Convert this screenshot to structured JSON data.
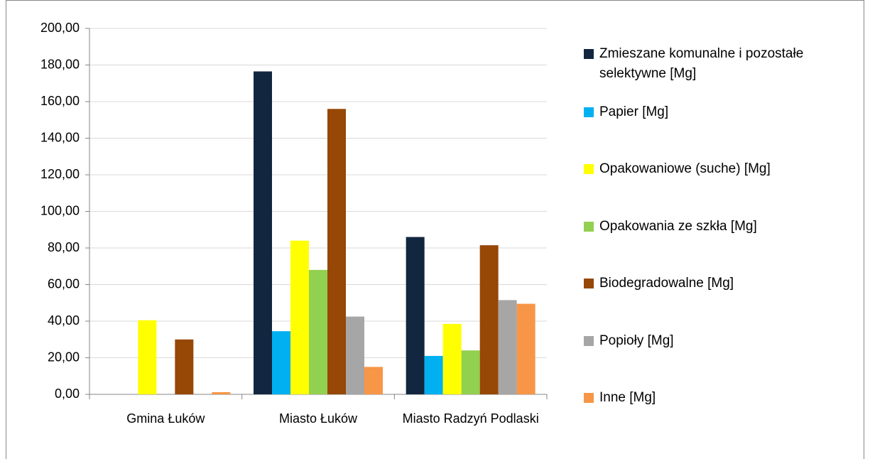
{
  "chart_data": {
    "type": "bar",
    "categories": [
      "Gmina Łuków",
      "Miasto Łuków",
      "Miasto Radzyń Podlaski"
    ],
    "series": [
      {
        "name": "Zmieszane komunalne i pozostałe selektywne [Mg]",
        "color": "#12263f",
        "values": [
          0,
          176.5,
          86
        ]
      },
      {
        "name": "Papier [Mg]",
        "color": "#00b0f0",
        "values": [
          0,
          34.5,
          21
        ]
      },
      {
        "name": "Opakowaniowe (suche) [Mg]",
        "color": "#ffff00",
        "values": [
          40.5,
          84,
          38.5
        ]
      },
      {
        "name": "Opakowania ze szkła [Mg]",
        "color": "#92d050",
        "values": [
          0,
          68,
          24
        ]
      },
      {
        "name": "Biodegradowalne [Mg]",
        "color": "#974706",
        "values": [
          30,
          156,
          81.5
        ]
      },
      {
        "name": "Popioły [Mg]",
        "color": "#a6a6a6",
        "values": [
          0,
          42.5,
          51.5
        ]
      },
      {
        "name": "Inne [Mg]",
        "color": "#f79646",
        "values": [
          1.2,
          15,
          49.5
        ]
      }
    ],
    "ylim": [
      0,
      200
    ],
    "yticks": [
      {
        "value": 0,
        "label": "0,00"
      },
      {
        "value": 20,
        "label": "20,00"
      },
      {
        "value": 40,
        "label": "40,00"
      },
      {
        "value": 60,
        "label": "60,00"
      },
      {
        "value": 80,
        "label": "80,00"
      },
      {
        "value": 100,
        "label": "100,00"
      },
      {
        "value": 120,
        "label": "120,00"
      },
      {
        "value": 140,
        "label": "140,00"
      },
      {
        "value": 160,
        "label": "160,00"
      },
      {
        "value": 180,
        "label": "180,00"
      },
      {
        "value": 200,
        "label": "200,00"
      }
    ],
    "grid": true,
    "legend": "right"
  }
}
